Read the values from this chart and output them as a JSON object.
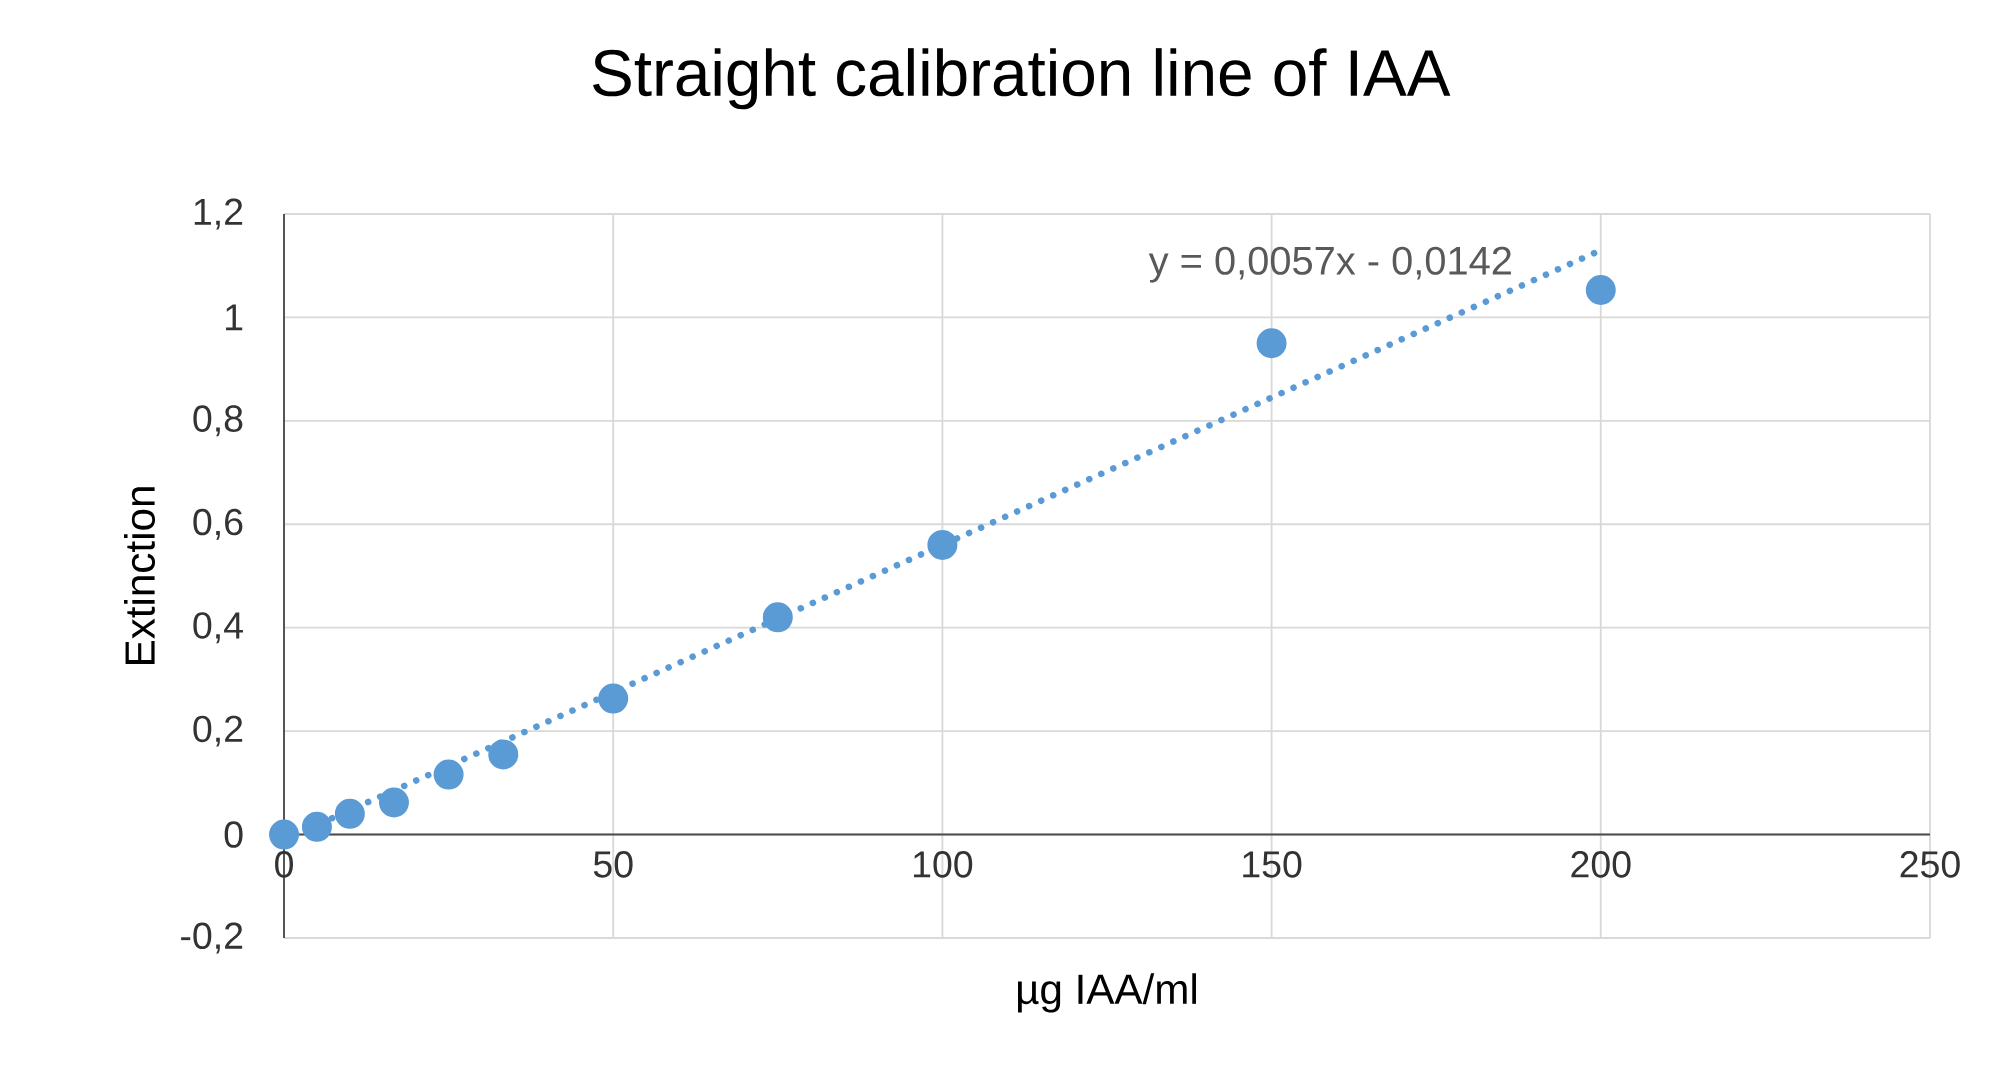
{
  "chart_data": {
    "type": "scatter",
    "title": "Straight calibration line of IAA",
    "xlabel": "µg IAA/ml",
    "ylabel": "Extinction",
    "xlim": [
      0,
      250
    ],
    "xticks": [
      0,
      50,
      100,
      150,
      200,
      250
    ],
    "ylim": [
      -0.2,
      1.2
    ],
    "yticks": [
      {
        "value": -0.2,
        "label": "-0,2"
      },
      {
        "value": 0,
        "label": "0"
      },
      {
        "value": 0.2,
        "label": "0,2"
      },
      {
        "value": 0.4,
        "label": "0,4"
      },
      {
        "value": 0.6,
        "label": "0,6"
      },
      {
        "value": 0.8,
        "label": "0,8"
      },
      {
        "value": 1,
        "label": "1"
      },
      {
        "value": 1.2,
        "label": "1,2"
      }
    ],
    "grid": true,
    "marker": "circle",
    "series": [
      {
        "color": "#5b9bd5",
        "x": [
          0,
          5,
          10,
          16.7,
          25,
          33.3,
          50,
          75,
          100,
          150,
          200
        ],
        "values": [
          0,
          0.015,
          0.04,
          0.062,
          0.116,
          0.155,
          0.263,
          0.42,
          0.56,
          0.95,
          1.053
        ]
      },
      {
        "type": "line",
        "color": "#5b9bd5",
        "line_style": "dotted",
        "marker": "none",
        "x": [
          0,
          200
        ],
        "values": [
          -0.01,
          1.13
        ]
      }
    ],
    "annotations": [
      "y = 0,0057x - 0,0142"
    ]
  }
}
